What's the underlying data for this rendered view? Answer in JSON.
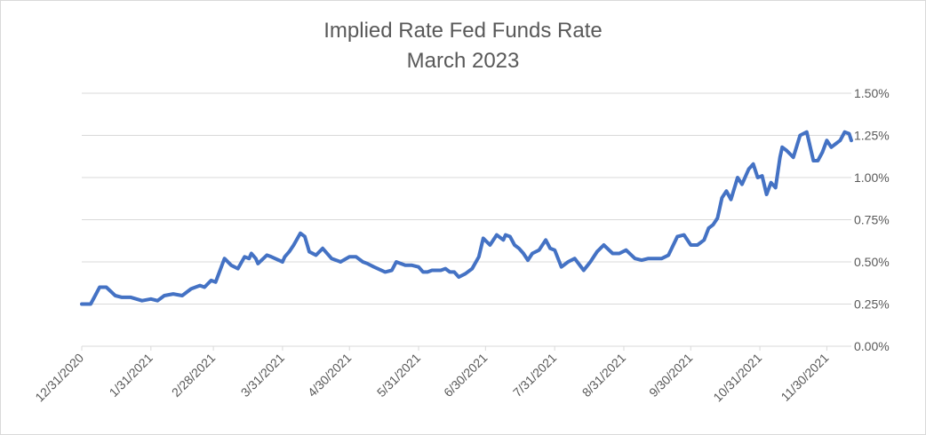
{
  "chart_data": {
    "type": "line",
    "title": "Implied Rate Fed Funds Rate",
    "subtitle": "March 2023",
    "xlabel": "",
    "ylabel": "",
    "x_ticks": [
      "12/31/2020",
      "1/31/2021",
      "2/28/2021",
      "3/31/2021",
      "4/30/2021",
      "5/31/2021",
      "6/30/2021",
      "7/31/2021",
      "8/31/2021",
      "9/30/2021",
      "10/31/2021",
      "11/30/2021"
    ],
    "y_ticks": [
      "0.00%",
      "0.25%",
      "0.50%",
      "0.75%",
      "1.00%",
      "1.25%",
      "1.50%"
    ],
    "ylim": [
      0,
      1.5
    ],
    "xlim": [
      "2020-12-31",
      "2021-12-11"
    ],
    "y_axis_position": "right",
    "grid": true,
    "legend": "none",
    "colors": {
      "line": "#4472c4",
      "grid": "#d9d9d9",
      "text": "#595959"
    },
    "series": [
      {
        "x": [
          "2020-12-31",
          "2021-01-04",
          "2021-01-06",
          "2021-01-08",
          "2021-01-11",
          "2021-01-15",
          "2021-01-18",
          "2021-01-22",
          "2021-01-27",
          "2021-01-31",
          "2021-02-03",
          "2021-02-06",
          "2021-02-10",
          "2021-02-14",
          "2021-02-18",
          "2021-02-22",
          "2021-02-24",
          "2021-02-27",
          "2021-03-01",
          "2021-03-05",
          "2021-03-08",
          "2021-03-11",
          "2021-03-14",
          "2021-03-16",
          "2021-03-17",
          "2021-03-19",
          "2021-03-20",
          "2021-03-24",
          "2021-03-26",
          "2021-03-31",
          "2021-04-01",
          "2021-04-03",
          "2021-04-05",
          "2021-04-08",
          "2021-04-10",
          "2021-04-12",
          "2021-04-15",
          "2021-04-18",
          "2021-04-22",
          "2021-04-26",
          "2021-04-30",
          "2021-05-03",
          "2021-05-06",
          "2021-05-08",
          "2021-05-11",
          "2021-05-16",
          "2021-05-19",
          "2021-05-21",
          "2021-05-25",
          "2021-05-28",
          "2021-05-31",
          "2021-06-02",
          "2021-06-04",
          "2021-06-06",
          "2021-06-08",
          "2021-06-10",
          "2021-06-12",
          "2021-06-14",
          "2021-06-16",
          "2021-06-18",
          "2021-06-21",
          "2021-06-24",
          "2021-06-27",
          "2021-06-29",
          "2021-07-02",
          "2021-07-05",
          "2021-07-08",
          "2021-07-09",
          "2021-07-11",
          "2021-07-13",
          "2021-07-15",
          "2021-07-17",
          "2021-07-19",
          "2021-07-21",
          "2021-07-24",
          "2021-07-27",
          "2021-07-29",
          "2021-07-31",
          "2021-08-03",
          "2021-08-06",
          "2021-08-09",
          "2021-08-13",
          "2021-08-16",
          "2021-08-19",
          "2021-08-22",
          "2021-08-26",
          "2021-08-29",
          "2021-09-01",
          "2021-09-05",
          "2021-09-08",
          "2021-09-11",
          "2021-09-14",
          "2021-09-17",
          "2021-09-20",
          "2021-09-24",
          "2021-09-27",
          "2021-09-30",
          "2021-10-03",
          "2021-10-06",
          "2021-10-08",
          "2021-10-10",
          "2021-10-12",
          "2021-10-14",
          "2021-10-16",
          "2021-10-18",
          "2021-10-21",
          "2021-10-23",
          "2021-10-26",
          "2021-10-28",
          "2021-10-30",
          "2021-11-01",
          "2021-11-03",
          "2021-11-05",
          "2021-11-07",
          "2021-11-09",
          "2021-11-10",
          "2021-11-12",
          "2021-11-15",
          "2021-11-18",
          "2021-11-21",
          "2021-11-24",
          "2021-11-26",
          "2021-11-28",
          "2021-11-30",
          "2021-12-02",
          "2021-12-04",
          "2021-12-06",
          "2021-12-08",
          "2021-12-10",
          "2021-12-11"
        ],
        "values": [
          0.25,
          0.25,
          0.3,
          0.35,
          0.35,
          0.3,
          0.29,
          0.29,
          0.27,
          0.28,
          0.27,
          0.3,
          0.31,
          0.3,
          0.34,
          0.36,
          0.35,
          0.39,
          0.38,
          0.52,
          0.48,
          0.46,
          0.53,
          0.52,
          0.55,
          0.52,
          0.49,
          0.54,
          0.53,
          0.5,
          0.53,
          0.56,
          0.6,
          0.67,
          0.65,
          0.56,
          0.54,
          0.58,
          0.52,
          0.5,
          0.53,
          0.53,
          0.5,
          0.49,
          0.47,
          0.44,
          0.45,
          0.5,
          0.48,
          0.48,
          0.47,
          0.44,
          0.44,
          0.45,
          0.45,
          0.45,
          0.46,
          0.44,
          0.44,
          0.41,
          0.43,
          0.46,
          0.53,
          0.64,
          0.6,
          0.66,
          0.63,
          0.66,
          0.65,
          0.6,
          0.58,
          0.55,
          0.51,
          0.55,
          0.57,
          0.63,
          0.58,
          0.57,
          0.47,
          0.5,
          0.52,
          0.45,
          0.5,
          0.56,
          0.6,
          0.55,
          0.55,
          0.57,
          0.52,
          0.51,
          0.52,
          0.52,
          0.52,
          0.54,
          0.65,
          0.66,
          0.6,
          0.6,
          0.63,
          0.7,
          0.72,
          0.76,
          0.88,
          0.92,
          0.87,
          1.0,
          0.96,
          1.05,
          1.08,
          1.0,
          1.01,
          0.9,
          0.97,
          0.94,
          1.12,
          1.18,
          1.16,
          1.12,
          1.25,
          1.27,
          1.1,
          1.1,
          1.15,
          1.22,
          1.18,
          1.2,
          1.22,
          1.27,
          1.26,
          1.22
        ]
      }
    ]
  }
}
